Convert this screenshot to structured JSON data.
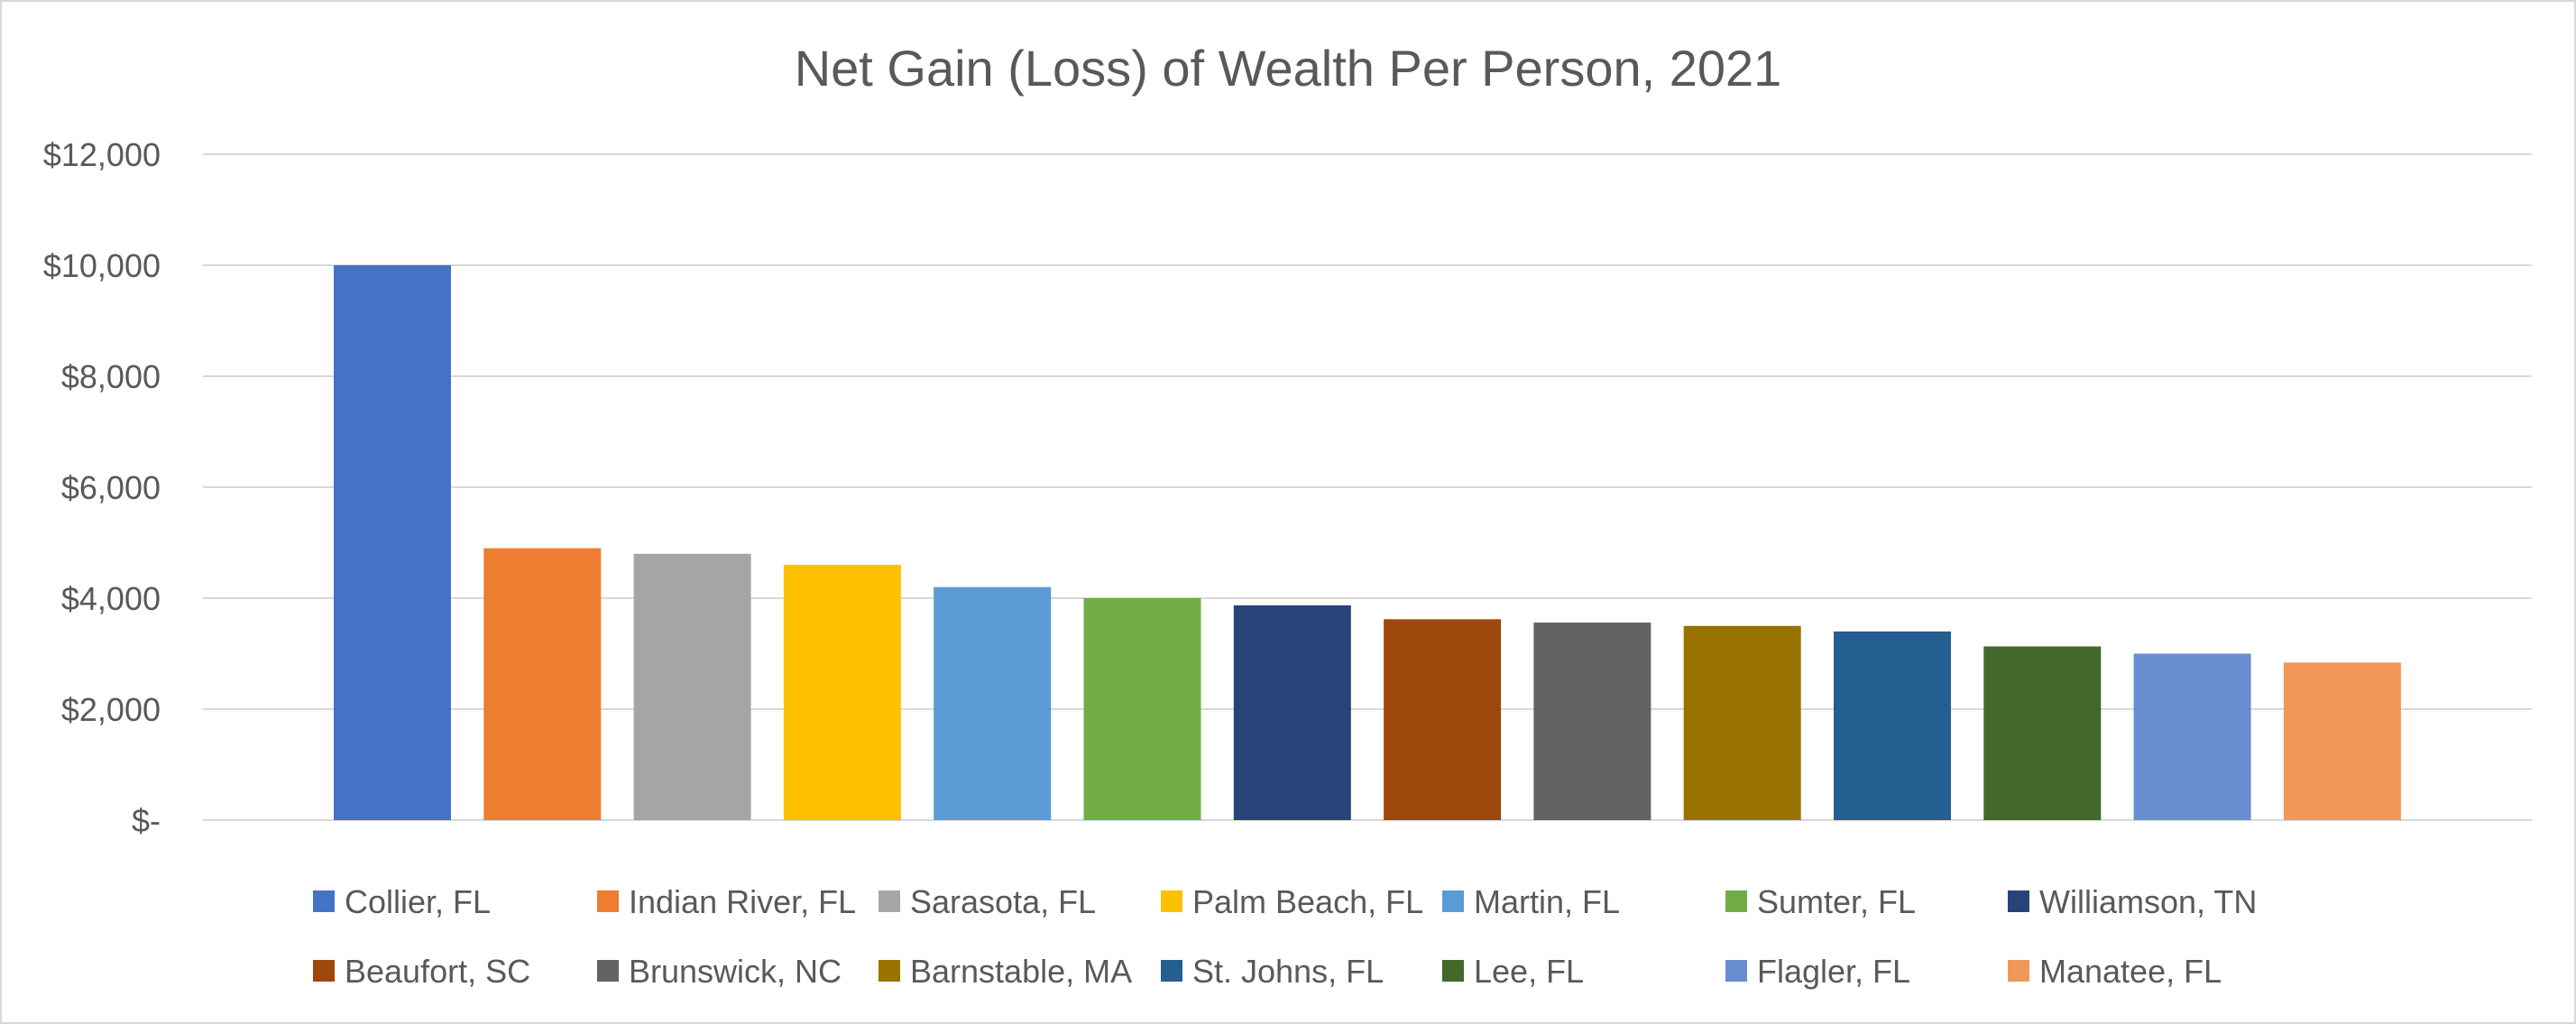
{
  "chart_data": {
    "type": "bar",
    "title": "Net Gain (Loss) of Wealth Per Person, 2021",
    "xlabel": "",
    "ylabel": "",
    "ylim": [
      0,
      12000
    ],
    "yticks": [
      0,
      2000,
      4000,
      6000,
      8000,
      10000,
      12000
    ],
    "ytick_labels": [
      "$-",
      "$2,000",
      "$4,000",
      "$6,000",
      "$8,000",
      "$10,000",
      "$12,000"
    ],
    "grid": true,
    "legend_position": "bottom",
    "categories": [
      "Collier, FL",
      "Indian River, FL",
      "Sarasota, FL",
      "Palm Beach, FL",
      "Martin, FL",
      "Sumter, FL",
      "Williamson, TN",
      "Beaufort, SC",
      "Brunswick, NC",
      "Barnstable, MA",
      "St. Johns, FL",
      "Lee, FL",
      "Flagler, FL",
      "Manatee, FL"
    ],
    "values": [
      10000,
      4900,
      4800,
      4600,
      4200,
      4000,
      3870,
      3620,
      3560,
      3500,
      3400,
      3130,
      3000,
      2840
    ],
    "colors": [
      "#4472C4",
      "#ED7D31",
      "#A5A5A5",
      "#FFC000",
      "#5B9BD5",
      "#70AD47",
      "#264478",
      "#9E480E",
      "#636363",
      "#997300",
      "#255E91",
      "#43682B",
      "#698ED0",
      "#F1975A"
    ]
  }
}
